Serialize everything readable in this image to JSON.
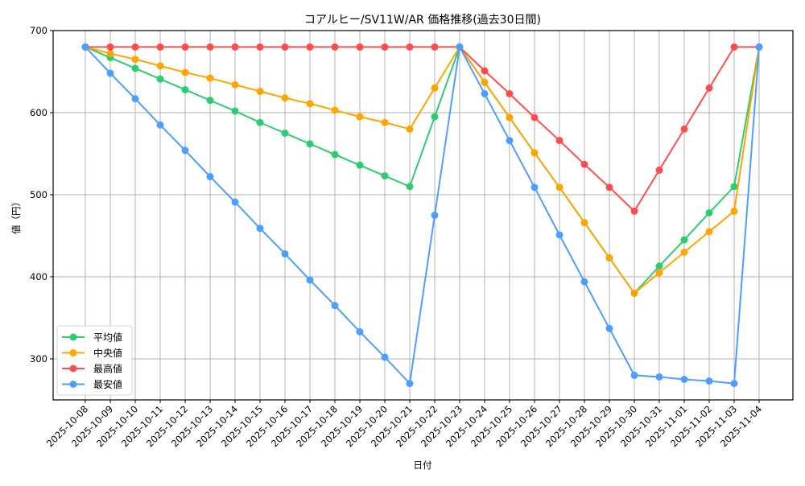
{
  "chart_data": {
    "type": "line",
    "title": "コアルヒー/SV11W/AR 価格推移(過去30日間)",
    "xlabel": "日付",
    "ylabel": "値（円）",
    "ylim": [
      250,
      700
    ],
    "yticks": [
      300,
      400,
      500,
      600,
      700
    ],
    "grid": true,
    "legend_position": "lower left",
    "categories": [
      "2025-10-08",
      "2025-10-09",
      "2025-10-10",
      "2025-10-11",
      "2025-10-12",
      "2025-10-13",
      "2025-10-14",
      "2025-10-15",
      "2025-10-16",
      "2025-10-17",
      "2025-10-18",
      "2025-10-19",
      "2025-10-20",
      "2025-10-21",
      "2025-10-22",
      "2025-10-23",
      "2025-10-24",
      "2025-10-25",
      "2025-10-26",
      "2025-10-27",
      "2025-10-28",
      "2025-10-29",
      "2025-10-30",
      "2025-10-31",
      "2025-11-01",
      "2025-11-02",
      "2025-11-03",
      "2025-11-04"
    ],
    "series": [
      {
        "name": "平均値",
        "color": "#2ecc71",
        "values": [
          680,
          667,
          654,
          641,
          628,
          615,
          602,
          588,
          575,
          562,
          549,
          536,
          523,
          510,
          595,
          680,
          637,
          594,
          551,
          509,
          466,
          423,
          380,
          413,
          445,
          478,
          510,
          680
        ]
      },
      {
        "name": "中央値",
        "color": "#ffa500",
        "values": [
          680,
          672,
          665,
          657,
          649,
          642,
          634,
          626,
          618,
          611,
          603,
          595,
          588,
          580,
          630,
          680,
          637,
          594,
          551,
          509,
          466,
          423,
          380,
          405,
          430,
          455,
          480,
          680
        ]
      },
      {
        "name": "最高値",
        "color": "#ff4d4d",
        "values": [
          680,
          680,
          680,
          680,
          680,
          680,
          680,
          680,
          680,
          680,
          680,
          680,
          680,
          680,
          680,
          680,
          651,
          623,
          594,
          566,
          537,
          509,
          480,
          530,
          580,
          630,
          680,
          680
        ]
      },
      {
        "name": "最安値",
        "color": "#4d9fff",
        "values": [
          680,
          648,
          617,
          585,
          554,
          522,
          491,
          459,
          428,
          396,
          365,
          333,
          302,
          270,
          475,
          680,
          623,
          566,
          509,
          451,
          394,
          337,
          280,
          278,
          275,
          273,
          270,
          680
        ]
      }
    ]
  }
}
